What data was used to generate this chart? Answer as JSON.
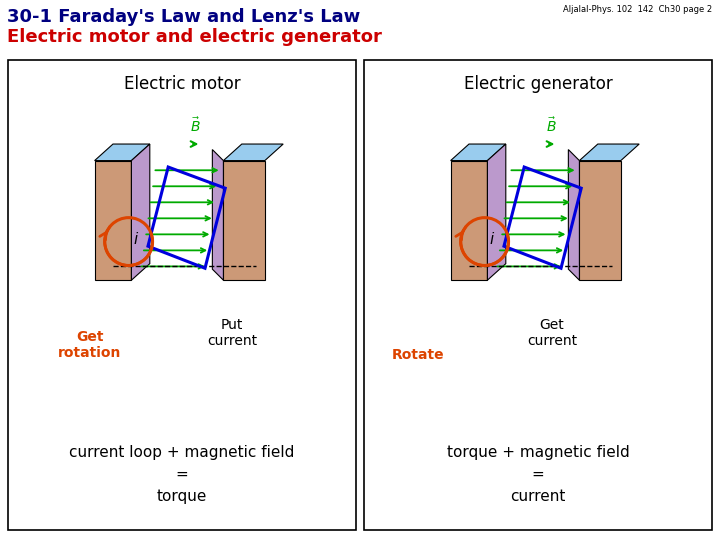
{
  "title_line1": "30-1 Faraday's Law and Lenz's Law",
  "title_line2": "Electric motor and electric generator",
  "watermark": "Aljalal-Phys. 102  142  Ch30 page 2",
  "title_color1": "#000080",
  "title_color2": "#cc0000",
  "bg_color": "#ffffff",
  "left_panel_title": "Electric motor",
  "right_panel_title": "Electric generator",
  "left_bottom_text": "current loop + magnetic field\n=\ntorque",
  "right_bottom_text": "torque + magnetic field\n=\ncurrent",
  "left_orange_label": "Get\nrotation",
  "left_black_label": "Put\ncurrent",
  "right_orange_label": "Rotate",
  "right_black_label": "Get\ncurrent",
  "orange_color": "#dd4400",
  "loop_color": "#0000dd",
  "field_color": "#00aa00",
  "magnet_peach": "#cc9977",
  "magnet_peach_dark": "#bb8866",
  "pole_purple": "#bb99cc",
  "top_blue": "#99ccee",
  "panel_border": "#000000"
}
